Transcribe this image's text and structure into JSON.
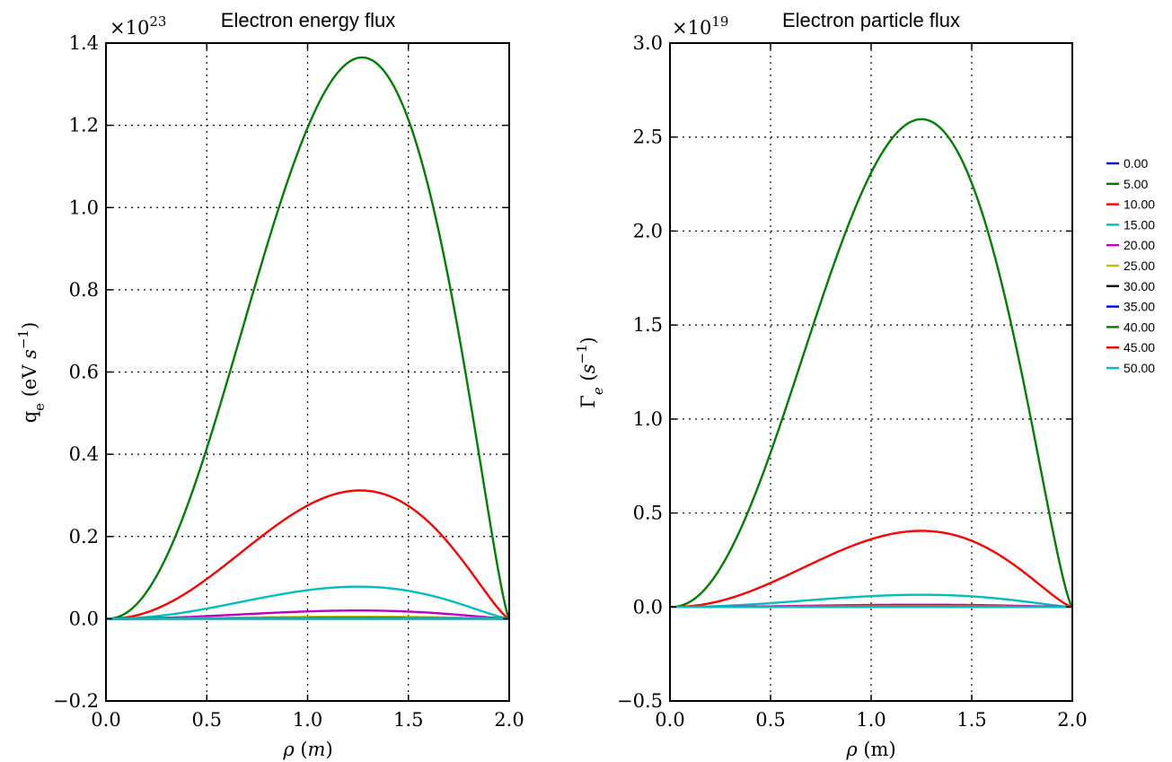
{
  "chart_data": [
    {
      "type": "line",
      "title": "Electron energy flux",
      "xlabel": "ρ (m)",
      "ylabel": "q_e (eV s^-1)",
      "multiplier": "×10^23",
      "xlim": [
        0.0,
        2.0
      ],
      "ylim": [
        -0.2,
        1.4
      ],
      "xticks": [
        "0.0",
        "0.5",
        "1.0",
        "1.5",
        "2.0"
      ],
      "yticks": [
        "−0.2",
        "0.0",
        "0.2",
        "0.4",
        "0.6",
        "0.8",
        "1.0",
        "1.2",
        "1.4"
      ],
      "grid": true,
      "series": [
        {
          "name": "0.00",
          "color": "#0000ff",
          "peak_value": 0.0,
          "peak_x": 1.27
        },
        {
          "name": "5.00",
          "color": "#007f00",
          "peak_value": 1.365,
          "peak_x": 1.27
        },
        {
          "name": "10.00",
          "color": "#ff0000",
          "peak_value": 0.312,
          "peak_x": 1.26
        },
        {
          "name": "15.00",
          "color": "#00bfbf",
          "peak_value": 0.078,
          "peak_x": 1.25
        },
        {
          "name": "20.00",
          "color": "#bf00bf",
          "peak_value": 0.02,
          "peak_x": 1.25
        },
        {
          "name": "25.00",
          "color": "#bfbf00",
          "peak_value": 0.005,
          "peak_x": 1.25
        },
        {
          "name": "30.00",
          "color": "#000000",
          "peak_value": 0.0012,
          "peak_x": 1.25
        },
        {
          "name": "35.00",
          "color": "#0000ff",
          "peak_value": 0.0003,
          "peak_x": 1.25
        },
        {
          "name": "40.00",
          "color": "#007f00",
          "peak_value": 0.0001,
          "peak_x": 1.25
        },
        {
          "name": "45.00",
          "color": "#ff0000",
          "peak_value": 0.0,
          "peak_x": 1.25
        },
        {
          "name": "50.00",
          "color": "#00bfbf",
          "peak_value": 0.0,
          "peak_x": 1.25
        }
      ]
    },
    {
      "type": "line",
      "title": "Electron particle flux",
      "xlabel": "ρ (m)",
      "ylabel": "Γ_e (s^-1)",
      "multiplier": "×10^19",
      "xlim": [
        0.0,
        2.0
      ],
      "ylim": [
        -0.5,
        3.0
      ],
      "xticks": [
        "0.0",
        "0.5",
        "1.0",
        "1.5",
        "2.0"
      ],
      "yticks": [
        "−0.5",
        "0.0",
        "0.5",
        "1.0",
        "1.5",
        "2.0",
        "2.5",
        "3.0"
      ],
      "grid": true,
      "series": [
        {
          "name": "0.00",
          "color": "#0000ff",
          "peak_value": 0.0,
          "peak_x": 1.25
        },
        {
          "name": "5.00",
          "color": "#007f00",
          "peak_value": 2.595,
          "peak_x": 1.25
        },
        {
          "name": "10.00",
          "color": "#ff0000",
          "peak_value": 0.405,
          "peak_x": 1.25
        },
        {
          "name": "15.00",
          "color": "#00bfbf",
          "peak_value": 0.065,
          "peak_x": 1.25
        },
        {
          "name": "20.00",
          "color": "#bf00bf",
          "peak_value": 0.012,
          "peak_x": 1.25
        },
        {
          "name": "25.00",
          "color": "#bfbf00",
          "peak_value": 0.003,
          "peak_x": 1.25
        },
        {
          "name": "30.00",
          "color": "#000000",
          "peak_value": 0.0006,
          "peak_x": 1.25
        },
        {
          "name": "35.00",
          "color": "#0000ff",
          "peak_value": 0.0001,
          "peak_x": 1.25
        },
        {
          "name": "40.00",
          "color": "#007f00",
          "peak_value": 0.0,
          "peak_x": 1.25
        },
        {
          "name": "45.00",
          "color": "#ff0000",
          "peak_value": 0.0,
          "peak_x": 1.25
        },
        {
          "name": "50.00",
          "color": "#00bfbf",
          "peak_value": 0.0,
          "peak_x": 1.25
        }
      ]
    }
  ],
  "legend": {
    "placement": "right",
    "entries": [
      "0.00",
      "5.00",
      "10.00",
      "15.00",
      "20.00",
      "25.00",
      "30.00",
      "35.00",
      "40.00",
      "45.00",
      "50.00"
    ]
  }
}
